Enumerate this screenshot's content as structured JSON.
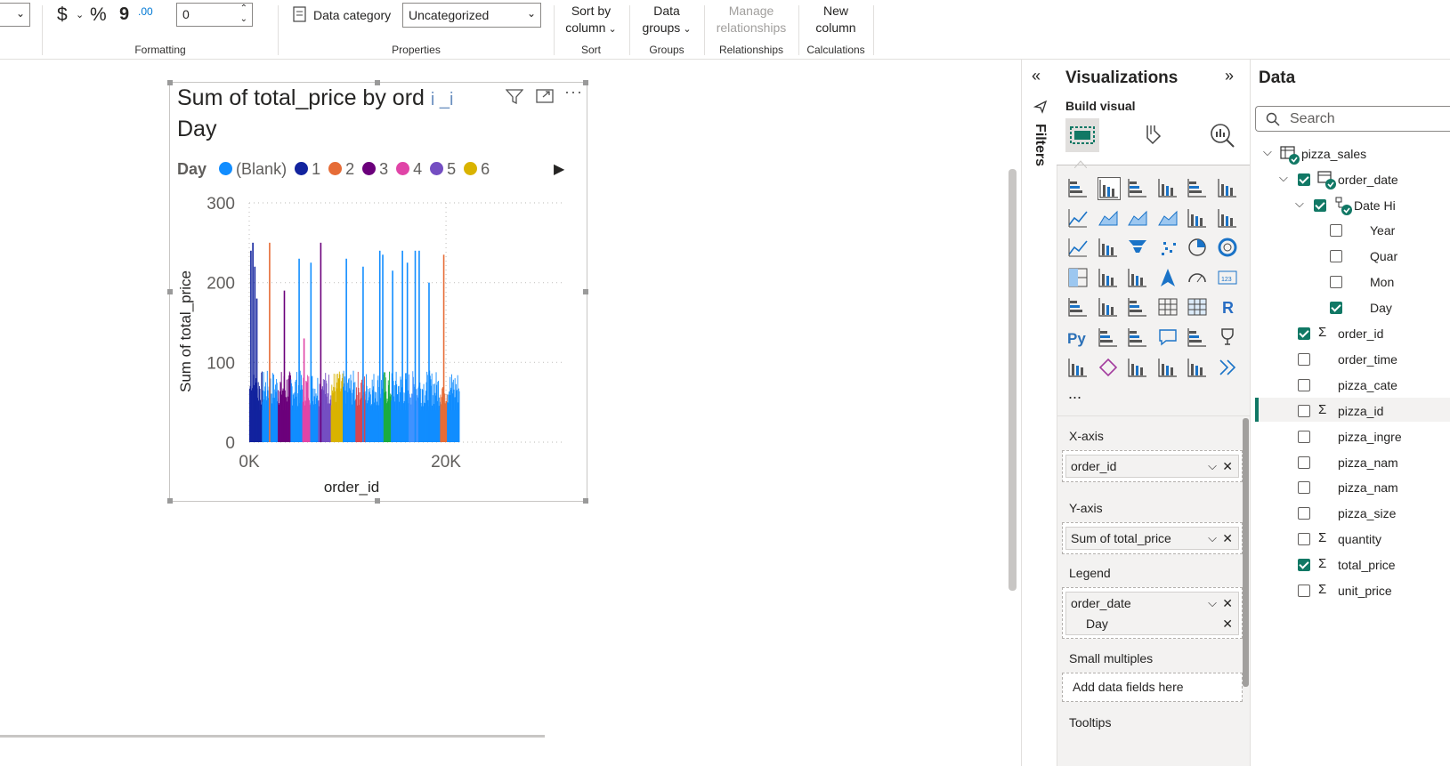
{
  "ribbon": {
    "currency_symbol": "$",
    "percent_symbol": "%",
    "comma_symbol": "9",
    "decimal_symbol": ".00",
    "decimal_value": "0",
    "data_category_label": "Data category",
    "data_category_value": "Uncategorized",
    "sort_by_column": [
      "Sort by",
      "column"
    ],
    "data_groups": [
      "Data",
      "groups"
    ],
    "manage_relationships": [
      "Manage",
      "relationships"
    ],
    "new_column": [
      "New",
      "column"
    ],
    "groups": {
      "formatting": "Formatting",
      "properties": "Properties",
      "sort": "Sort",
      "groups": "Groups",
      "relationships": "Relationships",
      "calculations": "Calculations"
    }
  },
  "visual": {
    "title_line1": "Sum of total_price by ord",
    "title_mid": "i _i",
    "title_line2": "Day",
    "legend_title": "Day",
    "legend_items": [
      {
        "label": "(Blank)",
        "color": "#118DFF"
      },
      {
        "label": "1",
        "color": "#12239E"
      },
      {
        "label": "2",
        "color": "#E66C37"
      },
      {
        "label": "3",
        "color": "#6B007B"
      },
      {
        "label": "4",
        "color": "#E044A7"
      },
      {
        "label": "5",
        "color": "#744EC2"
      },
      {
        "label": "6",
        "color": "#D9B300"
      }
    ]
  },
  "chart_data": {
    "type": "bar",
    "title": "Sum of total_price by order_id and Day",
    "xlabel": "order_id",
    "ylabel": "Sum of total_price",
    "ylim": [
      0,
      300
    ],
    "yticks": [
      "0",
      "100",
      "200",
      "300"
    ],
    "xticks": [
      "0K",
      "20K"
    ],
    "xlim": [
      0,
      21350
    ],
    "grid": true,
    "legend_position": "top",
    "series": [
      {
        "name": "(Blank)",
        "color": "#118DFF",
        "x": [
          5000,
          6200,
          9800,
          11500,
          13200,
          13500,
          14500,
          15500,
          16000,
          16800,
          17200,
          18200
        ],
        "values": [
          230,
          225,
          230,
          220,
          240,
          235,
          215,
          240,
          225,
          240,
          240,
          200
        ]
      },
      {
        "name": "1",
        "color": "#12239E",
        "x": [
          100,
          300,
          500,
          700
        ],
        "values": [
          240,
          250,
          220,
          180
        ]
      },
      {
        "name": "2",
        "color": "#E66C37",
        "x": [
          2000,
          19700
        ],
        "values": [
          250,
          235
        ]
      },
      {
        "name": "3",
        "color": "#6B007B",
        "x": [
          3500,
          7200
        ],
        "values": [
          190,
          250
        ]
      },
      {
        "name": "4",
        "color": "#E044A7",
        "x": [
          5500
        ],
        "values": [
          130
        ]
      },
      {
        "name": "5",
        "color": "#744EC2",
        "x": [
          7400
        ],
        "values": [
          70
        ]
      },
      {
        "name": "6",
        "color": "#D9B300",
        "x": [
          9000
        ],
        "values": [
          80
        ]
      }
    ]
  },
  "filters": {
    "label": "Filters"
  },
  "viz": {
    "title": "Visualizations",
    "build_visual": "Build visual",
    "more": "...",
    "xaxis_label": "X-axis",
    "xaxis_field": "order_id",
    "yaxis_label": "Y-axis",
    "yaxis_field": "Sum of total_price",
    "legend_label": "Legend",
    "legend_field": "order_date",
    "legend_sub": "Day",
    "small_multiples": "Small multiples",
    "add_fields": "Add data fields here",
    "tooltips": "Tooltips"
  },
  "data": {
    "title": "Data",
    "search_placeholder": "Search",
    "table": "pizza_sales",
    "order_date": "order_date",
    "date_hierarchy": "Date Hi",
    "hier_items": [
      {
        "label": "Year",
        "checked": false
      },
      {
        "label": "Quar",
        "checked": false
      },
      {
        "label": "Mon",
        "checked": false
      },
      {
        "label": "Day",
        "checked": true
      }
    ],
    "fields": [
      {
        "label": "order_id",
        "sigma": true,
        "checked": true
      },
      {
        "label": "order_time",
        "sigma": false,
        "checked": false
      },
      {
        "label": "pizza_cate",
        "sigma": false,
        "checked": false
      },
      {
        "label": "pizza_id",
        "sigma": true,
        "checked": false
      },
      {
        "label": "pizza_ingre",
        "sigma": false,
        "checked": false
      },
      {
        "label": "pizza_nam",
        "sigma": false,
        "checked": false
      },
      {
        "label": "pizza_nam",
        "sigma": false,
        "checked": false
      },
      {
        "label": "pizza_size",
        "sigma": false,
        "checked": false
      },
      {
        "label": "quantity",
        "sigma": true,
        "checked": false
      },
      {
        "label": "total_price",
        "sigma": true,
        "checked": true
      },
      {
        "label": "unit_price",
        "sigma": true,
        "checked": false
      }
    ]
  }
}
